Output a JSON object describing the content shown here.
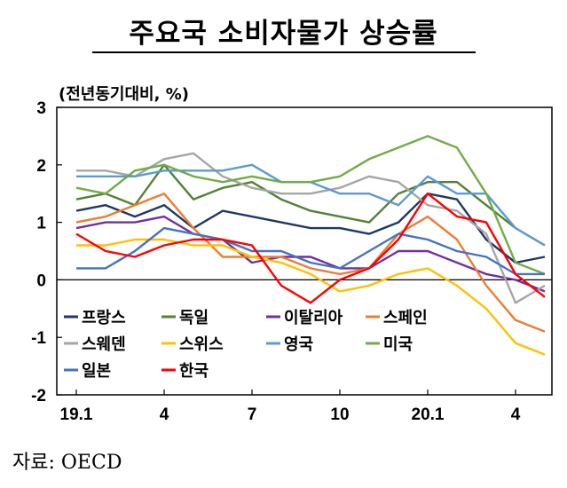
{
  "title": "주요국 소비자물가 상승률",
  "source": "자료: OECD",
  "chart_data": {
    "type": "line",
    "ylabel": "(전년동기대비, %)",
    "ylim": [
      -2,
      3
    ],
    "y_ticks": [
      "3",
      "2",
      "1",
      "0",
      "-1",
      "-2"
    ],
    "x_ticks": [
      {
        "i": 0,
        "label": "19.1"
      },
      {
        "i": 3,
        "label": "4"
      },
      {
        "i": 6,
        "label": "7"
      },
      {
        "i": 9,
        "label": "10"
      },
      {
        "i": 12,
        "label": "20.1"
      },
      {
        "i": 15,
        "label": "4"
      }
    ],
    "n_points": 17,
    "legend": "bottom-left inside",
    "series": [
      {
        "name": "프랑스",
        "color": "#1f3864",
        "values": [
          1.2,
          1.3,
          1.1,
          1.3,
          0.9,
          1.2,
          1.1,
          1.0,
          0.9,
          0.9,
          0.8,
          1.0,
          1.5,
          1.4,
          0.7,
          0.3,
          0.4
        ]
      },
      {
        "name": "독일",
        "color": "#548235",
        "values": [
          1.4,
          1.5,
          1.3,
          2.0,
          1.4,
          1.6,
          1.7,
          1.4,
          1.2,
          1.1,
          1.0,
          1.5,
          1.7,
          1.7,
          1.3,
          0.9,
          0.6
        ]
      },
      {
        "name": "이탈리아",
        "color": "#7030a0",
        "values": [
          0.9,
          1.0,
          1.0,
          1.1,
          0.8,
          0.7,
          0.3,
          0.4,
          0.4,
          0.2,
          0.2,
          0.5,
          0.5,
          0.3,
          0.1,
          0.0,
          -0.2
        ]
      },
      {
        "name": "스페인",
        "color": "#ed7d31",
        "values": [
          1.0,
          1.1,
          1.3,
          1.5,
          0.9,
          0.4,
          0.4,
          0.4,
          0.2,
          0.1,
          0.2,
          0.8,
          1.1,
          0.7,
          -0.1,
          -0.7,
          -0.9
        ]
      },
      {
        "name": "스웨덴",
        "color": "#a6a6a6",
        "values": [
          1.9,
          1.9,
          1.8,
          2.1,
          2.2,
          1.8,
          1.6,
          1.5,
          1.5,
          1.6,
          1.8,
          1.7,
          1.3,
          1.2,
          0.8,
          -0.4,
          -0.1
        ]
      },
      {
        "name": "스위스",
        "color": "#ffc000",
        "values": [
          0.6,
          0.6,
          0.7,
          0.7,
          0.6,
          0.6,
          0.4,
          0.3,
          0.1,
          -0.2,
          -0.1,
          0.1,
          0.2,
          -0.1,
          -0.5,
          -1.1,
          -1.3
        ]
      },
      {
        "name": "영국",
        "color": "#5b9bd5",
        "values": [
          1.8,
          1.8,
          1.8,
          1.9,
          1.9,
          1.9,
          2.0,
          1.7,
          1.7,
          1.5,
          1.5,
          1.3,
          1.8,
          1.5,
          1.5,
          0.9,
          0.6
        ]
      },
      {
        "name": "미국",
        "color": "#70ad47",
        "values": [
          1.6,
          1.5,
          1.9,
          2.0,
          1.8,
          1.7,
          1.8,
          1.7,
          1.7,
          1.8,
          2.1,
          2.3,
          2.5,
          2.3,
          1.5,
          0.3,
          0.1
        ]
      },
      {
        "name": "일본",
        "color": "#4472c4",
        "values": [
          0.2,
          0.2,
          0.5,
          0.9,
          0.8,
          0.7,
          0.5,
          0.5,
          0.3,
          0.2,
          0.5,
          0.8,
          0.7,
          0.5,
          0.4,
          0.1,
          0.1
        ]
      },
      {
        "name": "한국",
        "color": "#ff0000",
        "values": [
          0.8,
          0.5,
          0.4,
          0.6,
          0.7,
          0.7,
          0.6,
          -0.1,
          -0.4,
          0.0,
          0.2,
          0.7,
          1.5,
          1.1,
          1.0,
          0.1,
          -0.3
        ]
      }
    ]
  }
}
